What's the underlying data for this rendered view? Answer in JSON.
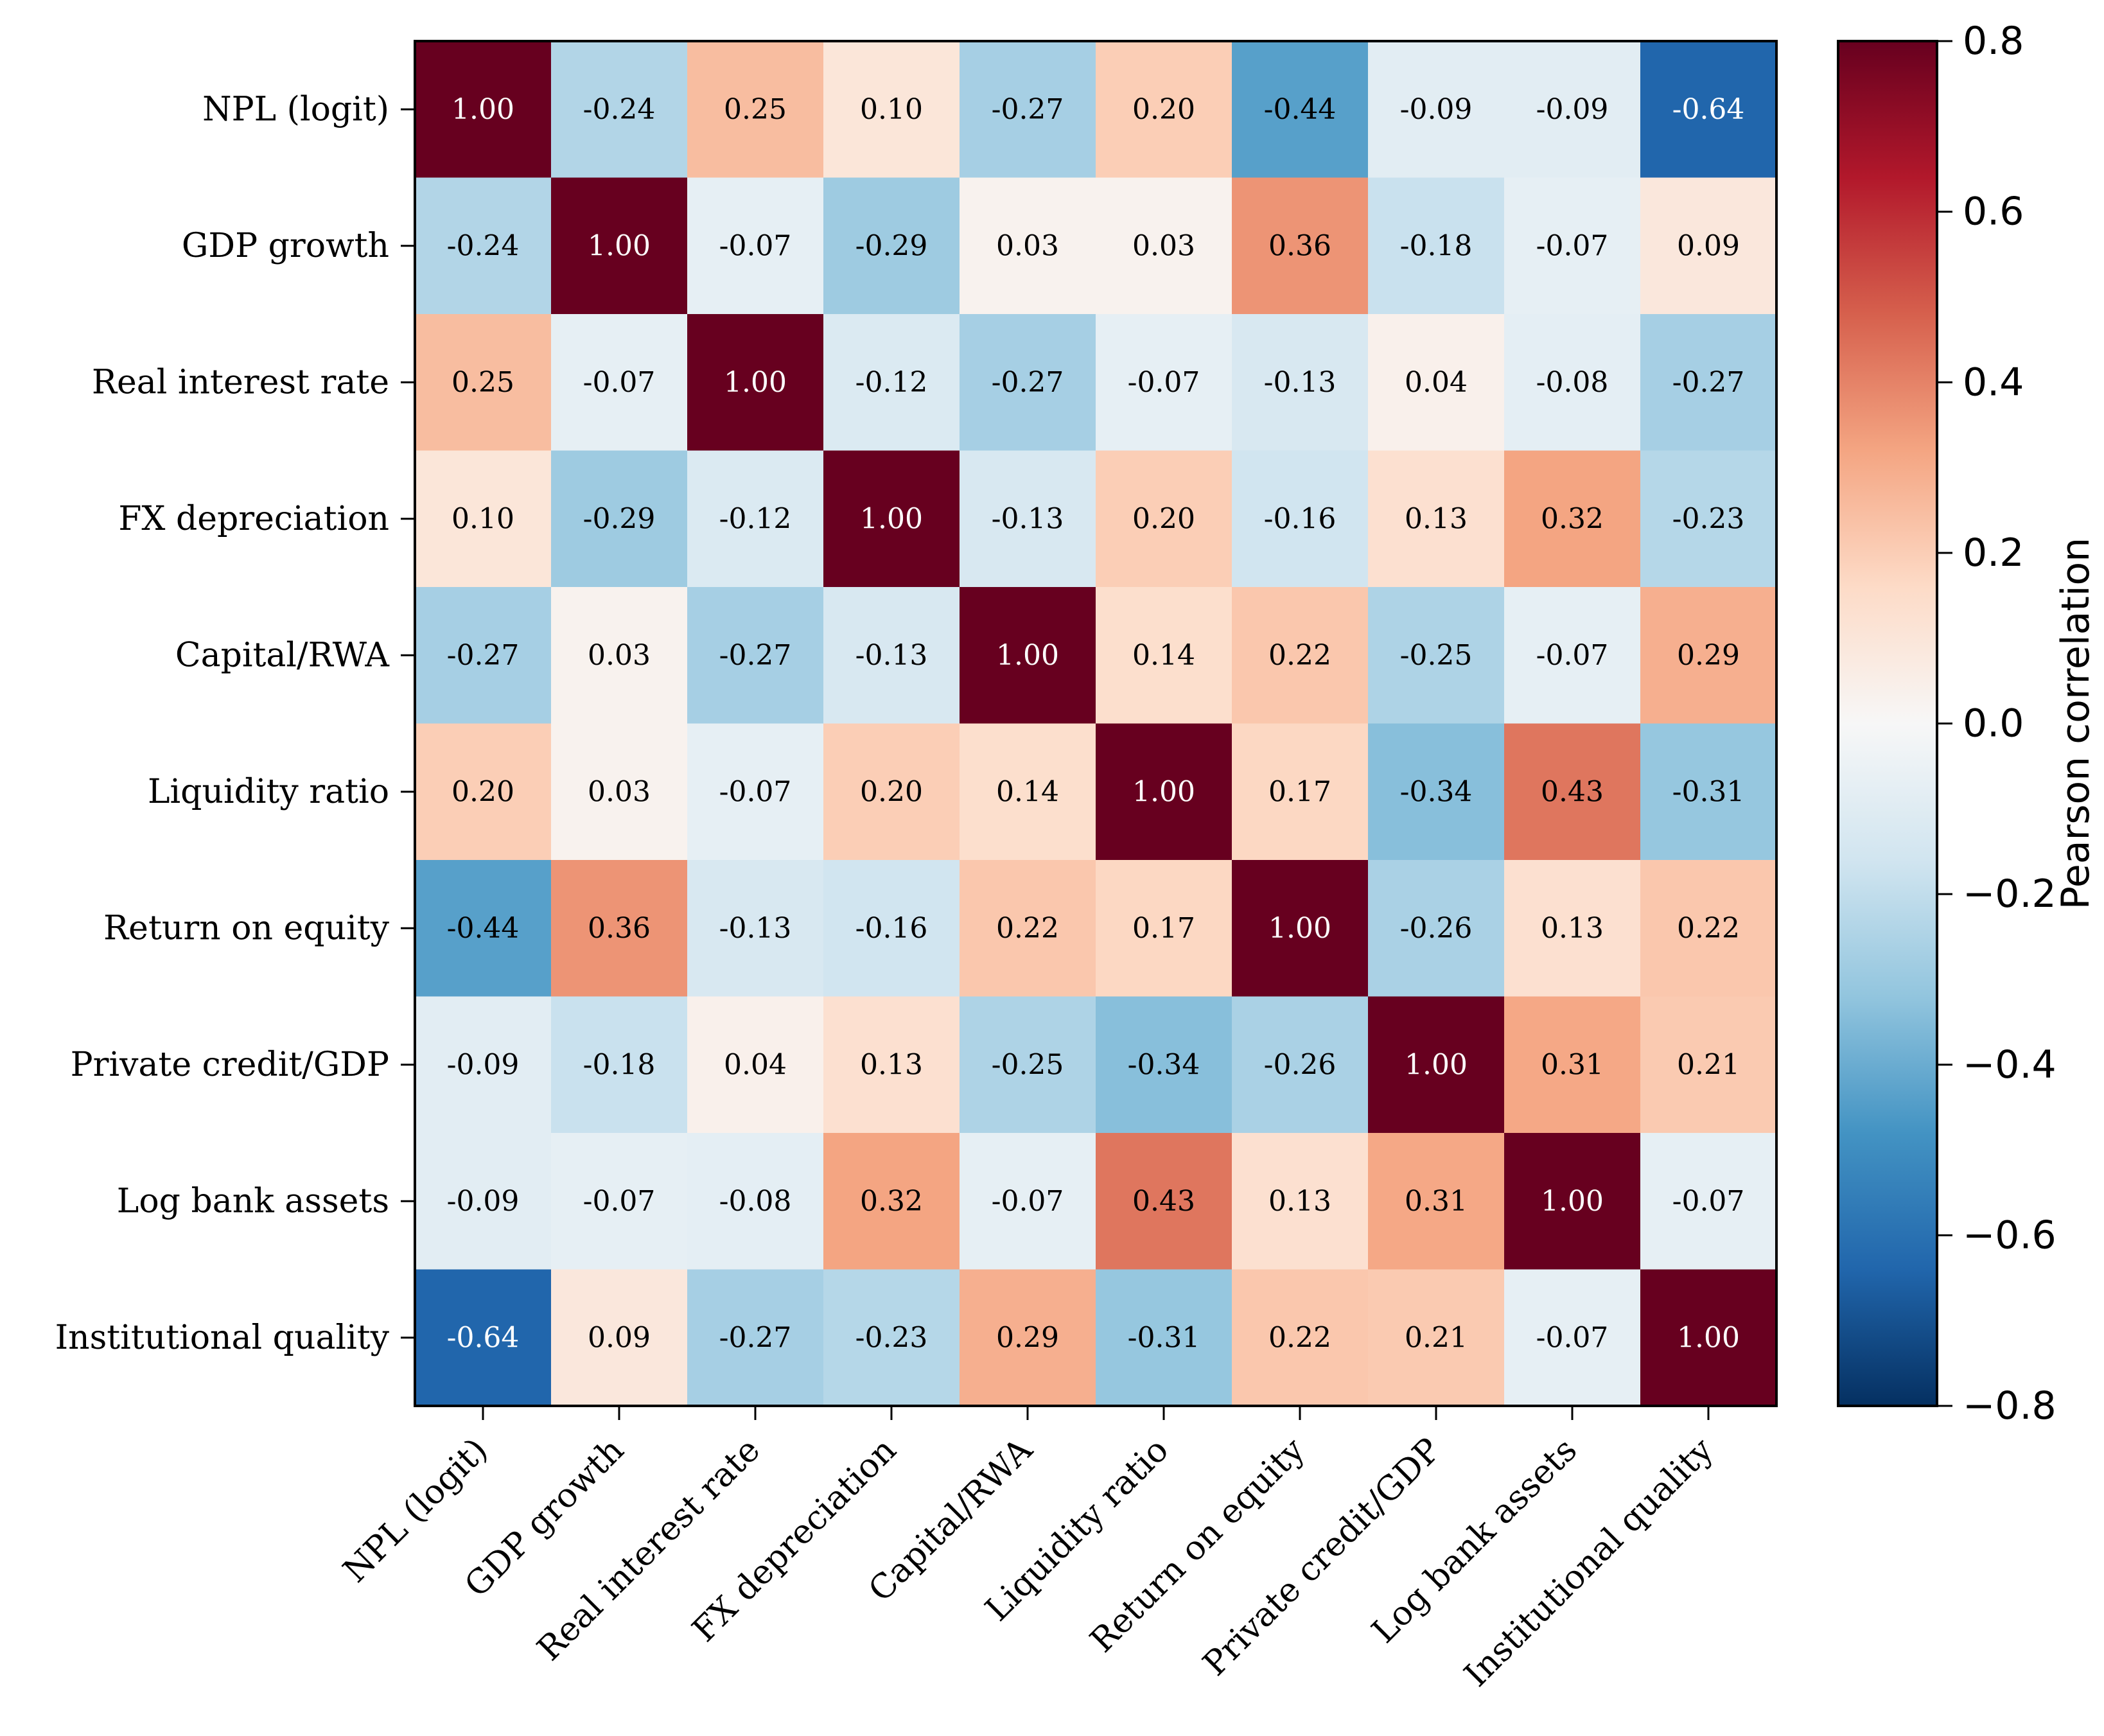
{
  "chart_data": {
    "type": "heatmap",
    "title": "",
    "xlabel": "",
    "ylabel": "",
    "variables": [
      "NPL (logit)",
      "GDP growth",
      "Real interest rate",
      "FX depreciation",
      "Capital/RWA",
      "Liquidity ratio",
      "Return on equity",
      "Private credit/GDP",
      "Log bank assets",
      "Institutional quality"
    ],
    "values": [
      [
        1.0,
        -0.24,
        0.25,
        0.1,
        -0.27,
        0.2,
        -0.44,
        -0.09,
        -0.09,
        -0.64
      ],
      [
        -0.24,
        1.0,
        -0.07,
        -0.29,
        0.03,
        0.03,
        0.36,
        -0.18,
        -0.07,
        0.09
      ],
      [
        0.25,
        -0.07,
        1.0,
        -0.12,
        -0.27,
        -0.07,
        -0.13,
        0.04,
        -0.08,
        -0.27
      ],
      [
        0.1,
        -0.29,
        -0.12,
        1.0,
        -0.13,
        0.2,
        -0.16,
        0.13,
        0.32,
        -0.23
      ],
      [
        -0.27,
        0.03,
        -0.27,
        -0.13,
        1.0,
        0.14,
        0.22,
        -0.25,
        -0.07,
        0.29
      ],
      [
        0.2,
        0.03,
        -0.07,
        0.2,
        0.14,
        1.0,
        0.17,
        -0.34,
        0.43,
        -0.31
      ],
      [
        -0.44,
        0.36,
        -0.13,
        -0.16,
        0.22,
        0.17,
        1.0,
        -0.26,
        0.13,
        0.22
      ],
      [
        -0.09,
        -0.18,
        0.04,
        0.13,
        -0.25,
        -0.34,
        -0.26,
        1.0,
        0.31,
        0.21
      ],
      [
        -0.09,
        -0.07,
        -0.08,
        0.32,
        -0.07,
        0.43,
        0.13,
        0.31,
        1.0,
        -0.07
      ],
      [
        -0.64,
        0.09,
        -0.27,
        -0.23,
        0.29,
        -0.31,
        0.22,
        0.21,
        -0.07,
        1.0
      ]
    ],
    "value_format": "0.00",
    "colormap": "RdBu_r",
    "color_range": [
      -0.8,
      0.8
    ],
    "colorbar": {
      "label": "Pearson correlation",
      "ticks": [
        0.8,
        0.6,
        0.4,
        0.2,
        0.0,
        -0.2,
        -0.4,
        -0.6,
        -0.8
      ],
      "tick_labels": [
        "0.8",
        "0.6",
        "0.4",
        "0.2",
        "0.0",
        "−0.2",
        "−0.4",
        "−0.6",
        "−0.8"
      ],
      "position": "right"
    },
    "colormap_stops": [
      "#67001f",
      "#b2182b",
      "#d6604d",
      "#f4a582",
      "#fddbc7",
      "#f7f7f7",
      "#d1e5f0",
      "#92c5de",
      "#4393c3",
      "#2166ac",
      "#053061"
    ],
    "grid": false,
    "x_tick_rotation_deg": 45
  }
}
